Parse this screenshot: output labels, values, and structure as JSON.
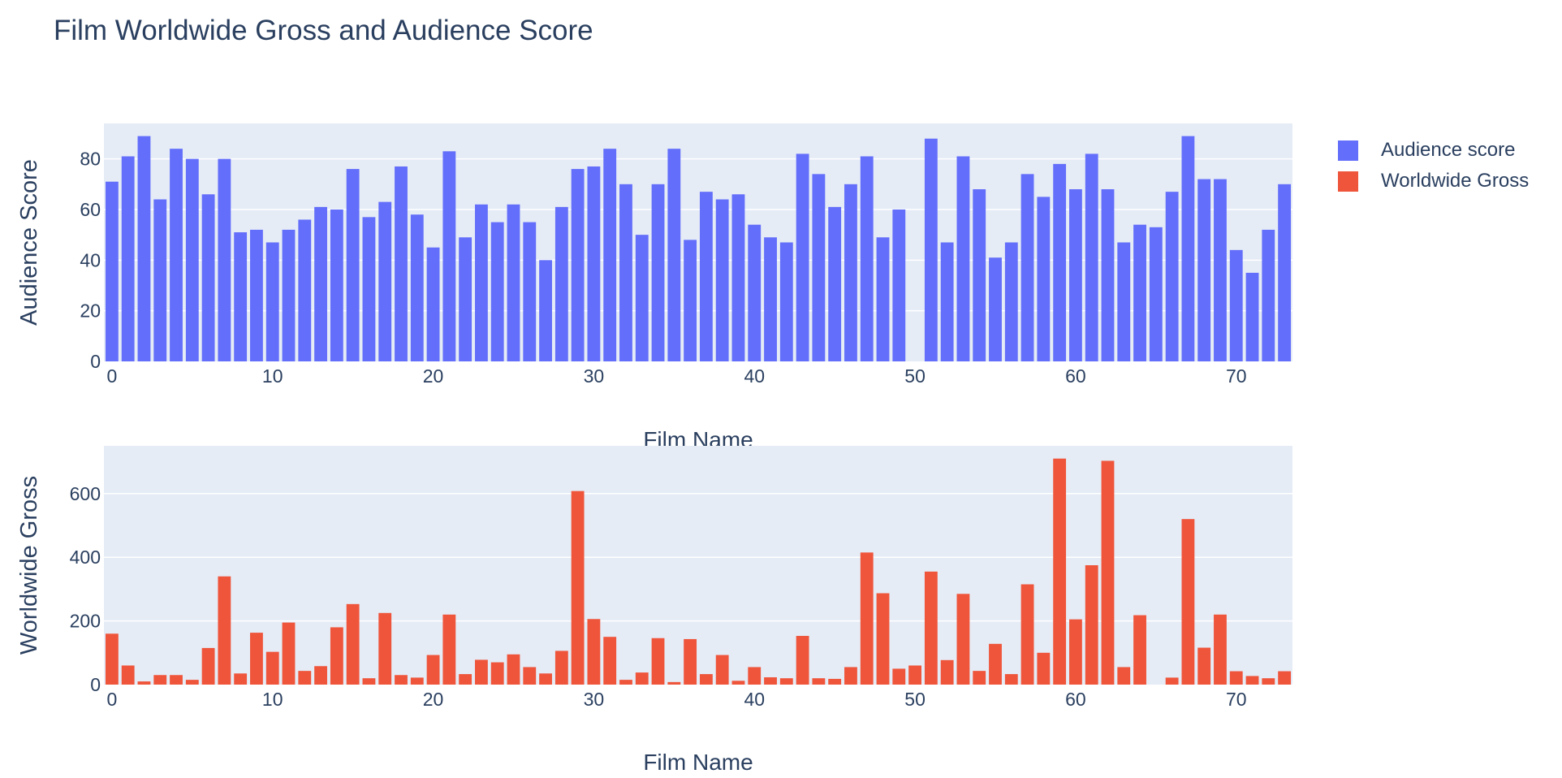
{
  "colors": {
    "audience": "#636efa",
    "gross": "#ef553b",
    "plot_bg": "#e5ecf6",
    "grid": "#ffffff",
    "text": "#2a3f5f"
  },
  "chart_data": {
    "type": "bar",
    "title": "Film Worldwide Gross and Audience Score",
    "x": [
      0,
      1,
      2,
      3,
      4,
      5,
      6,
      7,
      8,
      9,
      10,
      11,
      12,
      13,
      14,
      15,
      16,
      17,
      18,
      19,
      20,
      21,
      22,
      23,
      24,
      25,
      26,
      27,
      28,
      29,
      30,
      31,
      32,
      33,
      34,
      35,
      36,
      37,
      38,
      39,
      40,
      41,
      42,
      43,
      44,
      45,
      46,
      47,
      48,
      49,
      50,
      51,
      52,
      53,
      54,
      55,
      56,
      57,
      58,
      59,
      60,
      61,
      62,
      63,
      64,
      65,
      66,
      67,
      68,
      69,
      70,
      71,
      72,
      73
    ],
    "legend": {
      "placement": "top-right",
      "items": [
        "Audience score",
        "Worldwide Gross"
      ]
    },
    "subplots": [
      {
        "series_name": "Audience score",
        "color_key": "audience",
        "xlabel": "Film Name",
        "ylabel": "Audience Score",
        "xlim": [
          -0.5,
          73.5
        ],
        "ylim": [
          0,
          94
        ],
        "yticks": [
          0,
          20,
          40,
          60,
          80
        ],
        "xticks": [
          0,
          10,
          20,
          30,
          40,
          50,
          60,
          70
        ],
        "grid": true,
        "values": [
          71,
          81,
          89,
          64,
          84,
          80,
          66,
          80,
          51,
          52,
          47,
          52,
          56,
          61,
          60,
          76,
          57,
          63,
          77,
          58,
          45,
          83,
          49,
          62,
          55,
          62,
          55,
          40,
          61,
          76,
          77,
          84,
          70,
          50,
          70,
          84,
          48,
          67,
          64,
          66,
          54,
          49,
          47,
          82,
          74,
          61,
          70,
          81,
          49,
          60,
          null,
          88,
          47,
          81,
          68,
          41,
          47,
          74,
          65,
          78,
          68,
          82,
          68,
          47,
          54,
          53,
          67,
          89,
          72,
          72,
          44,
          35,
          52,
          70
        ]
      },
      {
        "series_name": "Worldwide Gross",
        "color_key": "gross",
        "xlabel": "Film Name",
        "ylabel": "Worldwide Gross",
        "xlim": [
          -0.5,
          73.5
        ],
        "ylim": [
          0,
          750
        ],
        "yticks": [
          0,
          200,
          400,
          600
        ],
        "xticks": [
          0,
          10,
          20,
          30,
          40,
          50,
          60,
          70
        ],
        "grid": true,
        "values": [
          160,
          60,
          10,
          30,
          30,
          15,
          115,
          340,
          35,
          163,
          103,
          195,
          43,
          58,
          180,
          253,
          20,
          225,
          30,
          22,
          93,
          220,
          33,
          78,
          70,
          95,
          55,
          35,
          106,
          608,
          206,
          150,
          15,
          38,
          146,
          8,
          143,
          33,
          93,
          12,
          55,
          23,
          20,
          153,
          20,
          18,
          55,
          415,
          287,
          50,
          60,
          355,
          77,
          285,
          43,
          128,
          33,
          315,
          100,
          710,
          205,
          375,
          703,
          55,
          218,
          0,
          22,
          520,
          116,
          220,
          42,
          27,
          20,
          42
        ]
      }
    ]
  }
}
